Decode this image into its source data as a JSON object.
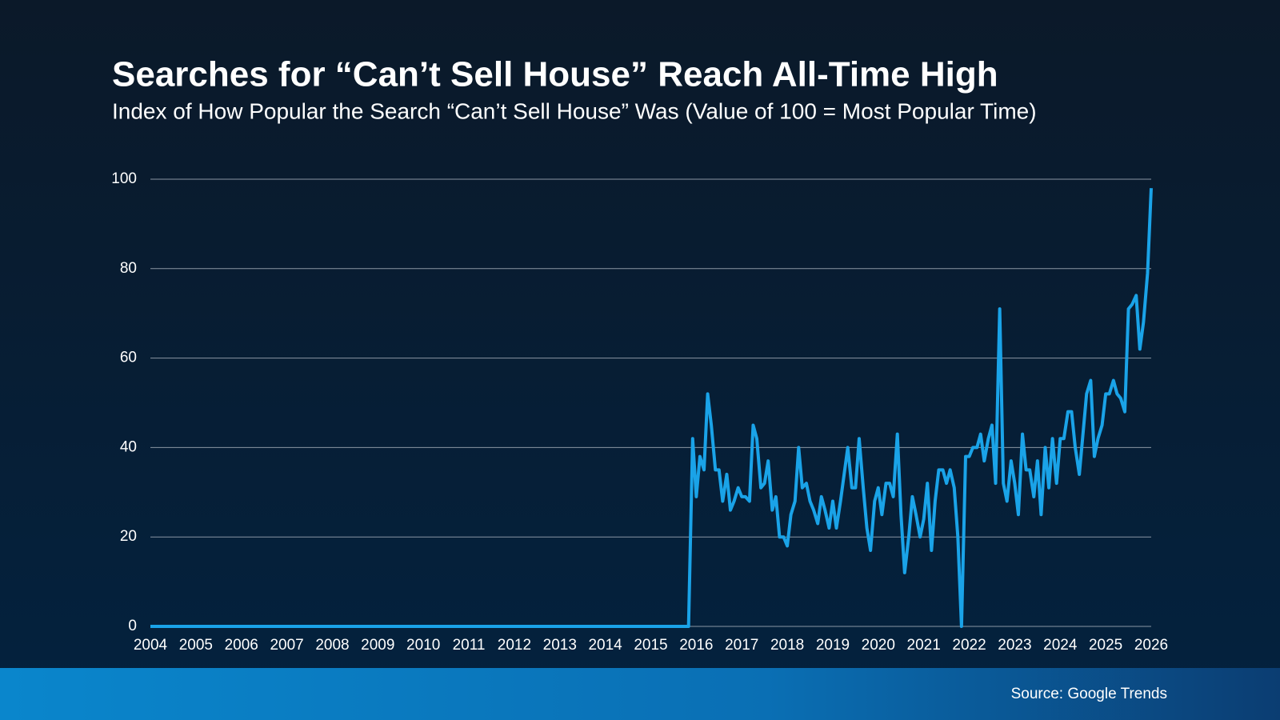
{
  "chart_data": {
    "type": "line",
    "title": "Searches for “Can’t Sell House” Reach All-Time High",
    "subtitle": "Index of How Popular the Search “Can’t Sell House” Was (Value of 100 = Most Popular Time)",
    "source": "Source: Google Trends",
    "x": [
      2004,
      2015.83,
      2015.92,
      2016,
      2016.08,
      2016.17,
      2016.25,
      2016.33,
      2016.42,
      2016.5,
      2016.58,
      2016.67,
      2016.75,
      2016.83,
      2016.92,
      2017,
      2017.08,
      2017.17,
      2017.25,
      2017.33,
      2017.42,
      2017.5,
      2017.58,
      2017.67,
      2017.75,
      2017.83,
      2017.92,
      2018,
      2018.08,
      2018.17,
      2018.25,
      2018.33,
      2018.42,
      2018.5,
      2018.58,
      2018.67,
      2018.75,
      2018.83,
      2018.92,
      2019,
      2019.08,
      2019.17,
      2019.25,
      2019.33,
      2019.42,
      2019.5,
      2019.58,
      2019.67,
      2019.75,
      2019.83,
      2019.92,
      2020,
      2020.08,
      2020.17,
      2020.25,
      2020.33,
      2020.42,
      2020.5,
      2020.58,
      2020.67,
      2020.75,
      2020.83,
      2020.92,
      2021,
      2021.08,
      2021.17,
      2021.25,
      2021.33,
      2021.42,
      2021.5,
      2021.58,
      2021.67,
      2021.75,
      2021.83,
      2021.92,
      2022,
      2022.08,
      2022.17,
      2022.25,
      2022.33,
      2022.42,
      2022.5,
      2022.58,
      2022.67,
      2022.75,
      2022.83,
      2022.92,
      2023,
      2023.08,
      2023.17,
      2023.25,
      2023.33,
      2023.42,
      2023.5,
      2023.58,
      2023.67,
      2023.75,
      2023.83,
      2023.92,
      2024,
      2024.08,
      2024.17,
      2024.25,
      2024.33,
      2024.42,
      2024.5,
      2024.58,
      2024.67,
      2024.75,
      2024.83,
      2024.92,
      2025,
      2025.08,
      2025.17,
      2025.25,
      2025.33,
      2025.42,
      2025.5,
      2025.58,
      2025.67,
      2025.75,
      2025.83,
      2025.92,
      2026
    ],
    "series": [
      {
        "color": "#1aa3e8",
        "values": [
          0,
          0,
          42,
          29,
          38,
          35,
          52,
          45,
          35,
          35,
          28,
          34,
          26,
          28,
          31,
          29,
          29,
          28,
          45,
          42,
          31,
          32,
          37,
          26,
          29,
          20,
          20,
          18,
          25,
          28,
          40,
          31,
          32,
          28,
          26,
          23,
          29,
          26,
          22,
          28,
          22,
          28,
          34,
          40,
          31,
          31,
          42,
          31,
          22,
          17,
          28,
          31,
          25,
          32,
          32,
          29,
          43,
          25,
          12,
          20,
          29,
          25,
          20,
          24,
          32,
          17,
          28,
          35,
          35,
          32,
          35,
          31,
          20,
          0,
          38,
          38,
          40,
          40,
          43,
          37,
          42,
          45,
          32,
          71,
          32,
          28,
          37,
          32,
          25,
          43,
          35,
          35,
          29,
          37,
          25,
          40,
          31,
          42,
          32,
          42,
          42,
          48,
          48,
          40,
          34,
          43,
          52,
          55,
          38,
          42,
          45,
          52,
          52,
          55,
          52,
          51,
          48,
          71,
          72,
          74,
          62,
          68,
          79,
          98
        ]
      }
    ],
    "xlim": [
      2004,
      2026
    ],
    "xticks": [
      2004,
      2005,
      2006,
      2007,
      2008,
      2009,
      2010,
      2011,
      2012,
      2013,
      2014,
      2015,
      2016,
      2017,
      2018,
      2019,
      2020,
      2021,
      2022,
      2023,
      2024,
      2025,
      2026
    ],
    "ylim": [
      0,
      100
    ],
    "yticks": [
      0,
      20,
      40,
      60,
      80,
      100
    ],
    "grid": true
  }
}
